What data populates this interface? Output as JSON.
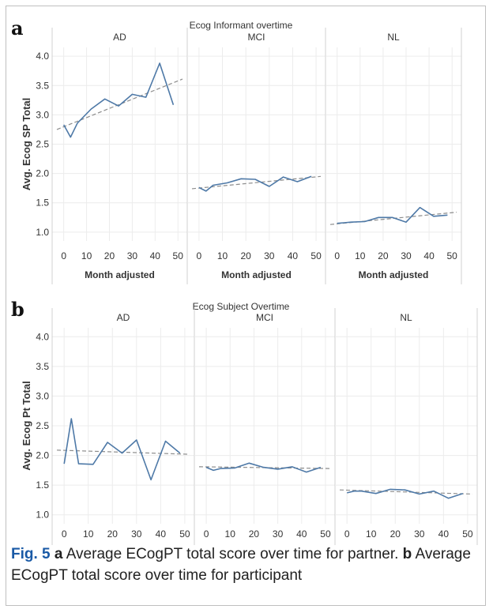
{
  "chart_data": [
    {
      "type": "line",
      "panel_label": "a",
      "title": "Ecog Informant overtime",
      "ylabel": "Avg. Ecog SP Total",
      "xlabel": "Month adjusted",
      "ylim": [
        0.85,
        4.15
      ],
      "yticks": [
        "4.0",
        "3.5",
        "3.0",
        "2.5",
        "2.0",
        "1.5",
        "1.0"
      ],
      "xticks": [
        "0",
        "10",
        "20",
        "30",
        "40",
        "50"
      ],
      "xlim": [
        -3,
        52
      ],
      "grid": true,
      "facets": [
        {
          "name": "AD",
          "x": [
            0,
            3,
            6,
            12,
            18,
            24,
            30,
            36,
            42,
            48
          ],
          "y": [
            2.83,
            2.62,
            2.86,
            3.1,
            3.27,
            3.15,
            3.35,
            3.3,
            3.88,
            3.17
          ],
          "trend": [
            [
              -3,
              2.75
            ],
            [
              52,
              3.61
            ]
          ]
        },
        {
          "name": "MCI",
          "x": [
            0,
            3,
            6,
            12,
            18,
            24,
            30,
            36,
            42,
            48
          ],
          "y": [
            1.76,
            1.7,
            1.8,
            1.84,
            1.91,
            1.9,
            1.78,
            1.94,
            1.86,
            1.95
          ],
          "trend": [
            [
              -3,
              1.74
            ],
            [
              52,
              1.95
            ]
          ]
        },
        {
          "name": "NL",
          "x": [
            0,
            3,
            6,
            12,
            18,
            24,
            30,
            36,
            42,
            48
          ],
          "y": [
            1.15,
            1.16,
            1.17,
            1.18,
            1.25,
            1.25,
            1.17,
            1.42,
            1.27,
            1.29
          ],
          "trend": [
            [
              -3,
              1.13
            ],
            [
              52,
              1.34
            ]
          ]
        }
      ]
    },
    {
      "type": "line",
      "panel_label": "b",
      "title": "Ecog Subject Overtime",
      "ylabel": "Avg. Ecog Pt Total",
      "xlabel": "Month adjusted",
      "ylim": [
        0.85,
        4.15
      ],
      "yticks": [
        "4.0",
        "3.5",
        "3.0",
        "2.5",
        "2.0",
        "1.5",
        "1.0"
      ],
      "xticks": [
        "0",
        "10",
        "20",
        "30",
        "40",
        "50"
      ],
      "xlim": [
        -3,
        52
      ],
      "grid": true,
      "facets": [
        {
          "name": "AD",
          "x": [
            0,
            3,
            6,
            12,
            18,
            24,
            30,
            36,
            42,
            48
          ],
          "y": [
            1.86,
            2.62,
            1.86,
            1.85,
            2.22,
            2.04,
            2.26,
            1.59,
            2.24,
            2.04
          ],
          "trend": [
            [
              -3,
              2.09
            ],
            [
              52,
              2.02
            ]
          ]
        },
        {
          "name": "MCI",
          "x": [
            0,
            3,
            6,
            12,
            18,
            24,
            30,
            36,
            42,
            48
          ],
          "y": [
            1.8,
            1.75,
            1.78,
            1.79,
            1.87,
            1.8,
            1.77,
            1.81,
            1.72,
            1.8
          ],
          "trend": [
            [
              -3,
              1.81
            ],
            [
              52,
              1.78
            ]
          ]
        },
        {
          "name": "NL",
          "x": [
            0,
            3,
            6,
            12,
            18,
            24,
            30,
            36,
            42,
            48
          ],
          "y": [
            1.37,
            1.4,
            1.4,
            1.36,
            1.43,
            1.42,
            1.35,
            1.4,
            1.28,
            1.36
          ],
          "trend": [
            [
              -3,
              1.42
            ],
            [
              52,
              1.35
            ]
          ]
        }
      ]
    }
  ],
  "caption": {
    "fig_label": "Fig. 5",
    "part_a_letter": "a",
    "part_a_text": " Average ECogPT total score over time for partner. ",
    "part_b_letter": "b",
    "part_b_text": " Average ECogPT total score over time for participant"
  },
  "colors": {
    "line": "#4e79a7",
    "trend": "#8c8c8c",
    "grid": "#ececec",
    "divider": "#d0d0d0",
    "text": "#333333",
    "fig_label": "#1a5aa6"
  }
}
